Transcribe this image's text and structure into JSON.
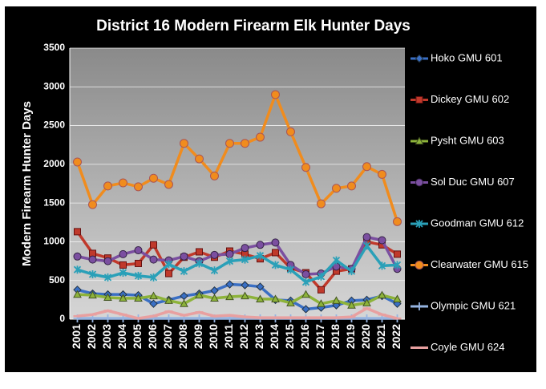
{
  "chart_data": {
    "type": "line",
    "title": "District 16 Modern Firearm Elk Hunter Days",
    "y_label": "Modern Firearm Hunter Days",
    "categories": [
      "2001",
      "2002",
      "2003",
      "2004",
      "2005",
      "2006",
      "2007",
      "2008",
      "2009",
      "2010",
      "2011",
      "2012",
      "2013",
      "2014",
      "2015",
      "2016",
      "2017",
      "2018",
      "2019",
      "2020",
      "2021",
      "2022"
    ],
    "ylim": [
      0,
      3500
    ],
    "yticks": [
      0,
      500,
      1000,
      1500,
      2000,
      2500,
      3000,
      3500
    ],
    "grid": true,
    "legend": "right",
    "series": [
      {
        "name": "Hoko GMU 601",
        "color": "#3a6fc4",
        "values": [
          380,
          330,
          320,
          320,
          310,
          200,
          250,
          300,
          330,
          370,
          450,
          440,
          420,
          250,
          240,
          130,
          150,
          180,
          240,
          250,
          300,
          200
        ]
      },
      {
        "name": "Dickey GMU 602",
        "color": "#c0392b",
        "values": [
          1130,
          850,
          790,
          700,
          720,
          960,
          590,
          800,
          870,
          800,
          880,
          840,
          780,
          860,
          660,
          600,
          380,
          620,
          650,
          1000,
          960,
          840
        ]
      },
      {
        "name": "Pysht GMU 603",
        "color": "#8db33a",
        "values": [
          320,
          310,
          280,
          270,
          270,
          300,
          240,
          200,
          310,
          270,
          290,
          300,
          260,
          260,
          210,
          320,
          200,
          240,
          180,
          210,
          310,
          260
        ]
      },
      {
        "name": "Sol Duc GMU 607",
        "color": "#7b4fa0",
        "values": [
          810,
          770,
          750,
          840,
          890,
          770,
          760,
          810,
          750,
          830,
          840,
          920,
          960,
          990,
          700,
          580,
          590,
          680,
          650,
          1060,
          1020,
          650
        ]
      },
      {
        "name": "Goodman GMU 612",
        "color": "#2aa0b8",
        "values": [
          640,
          580,
          540,
          600,
          560,
          540,
          710,
          620,
          720,
          630,
          750,
          770,
          820,
          700,
          640,
          480,
          550,
          760,
          620,
          950,
          690,
          700
        ]
      },
      {
        "name": "Clearwater GMU 615",
        "color": "#f08c1e",
        "values": [
          2030,
          1480,
          1720,
          1760,
          1710,
          1820,
          1740,
          2270,
          2070,
          1850,
          2270,
          2270,
          2350,
          2900,
          2420,
          1960,
          1490,
          1690,
          1720,
          1970,
          1870,
          1260
        ]
      },
      {
        "name": "Olympic GMU 621",
        "color": "#95b3e0",
        "values": [
          10,
          10,
          10,
          10,
          10,
          10,
          10,
          10,
          10,
          10,
          10,
          10,
          10,
          10,
          10,
          10,
          10,
          10,
          10,
          10,
          10,
          10
        ]
      },
      {
        "name": "Coyle GMU 624",
        "color": "#e8a0a0",
        "values": [
          40,
          60,
          110,
          60,
          10,
          40,
          100,
          50,
          90,
          40,
          50,
          30,
          20,
          20,
          20,
          20,
          20,
          20,
          30,
          140,
          60,
          10
        ]
      }
    ]
  }
}
